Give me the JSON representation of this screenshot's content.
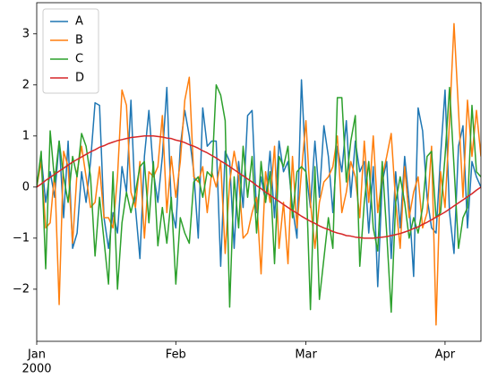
{
  "chart_data": {
    "type": "line",
    "xlim": [
      0,
      99
    ],
    "xticks": [
      {
        "value": 0,
        "label": "Jan"
      },
      {
        "value": 31,
        "label": "Feb"
      },
      {
        "value": 60,
        "label": "Mar"
      },
      {
        "value": 91,
        "label": "Apr"
      }
    ],
    "x_offset_label": "2000",
    "ylim": [
      -3.02,
      3.61
    ],
    "yticks": [
      {
        "value": -2,
        "label": "−2"
      },
      {
        "value": -1,
        "label": "−1"
      },
      0,
      1,
      2,
      3
    ],
    "legend": "upper left",
    "series": [
      {
        "name": "A",
        "color": "#1f77b4",
        "values": [
          0.0,
          0.6,
          -0.3,
          0.3,
          -0.2,
          0.9,
          -0.6,
          0.9,
          -1.2,
          -0.9,
          0.3,
          -0.3,
          0.5,
          1.65,
          1.6,
          -0.6,
          -1.2,
          -0.5,
          -0.9,
          0.4,
          -0.1,
          1.7,
          -0.4,
          -1.4,
          0.6,
          1.5,
          0.3,
          -0.3,
          0.6,
          1.95,
          -0.4,
          -0.8,
          0.8,
          1.5,
          1.0,
          0.3,
          -1.0,
          1.55,
          0.8,
          0.9,
          0.9,
          -1.55,
          0.7,
          0.5,
          -1.2,
          0.5,
          -0.4,
          1.4,
          1.5,
          -0.5,
          0.2,
          -0.3,
          0.7,
          -0.6,
          0.9,
          0.3,
          0.5,
          -0.4,
          -1.0,
          2.1,
          0.3,
          -0.4,
          0.9,
          -0.2,
          1.2,
          0.6,
          -0.5,
          0.8,
          0.3,
          1.3,
          -0.2,
          0.9,
          0.3,
          0.5,
          -0.9,
          0.4,
          -1.95,
          0.1,
          0.5,
          -1.4,
          0.3,
          -0.8,
          0.6,
          -0.3,
          -1.75,
          1.55,
          1.1,
          -0.2,
          -0.8,
          -0.9,
          0.6,
          1.9,
          -0.5,
          -1.3,
          0.8,
          1.2,
          -0.8,
          0.5,
          0.2,
          0.0
        ]
      },
      {
        "name": "B",
        "color": "#ff7f0e",
        "values": [
          0.0,
          0.5,
          -0.8,
          -0.7,
          0.3,
          -2.3,
          0.7,
          0.4,
          -1.1,
          0.3,
          0.8,
          0.2,
          -0.4,
          -0.3,
          0.4,
          -0.6,
          -0.6,
          -0.8,
          0.2,
          1.9,
          1.6,
          -0.1,
          -0.4,
          0.5,
          -1.0,
          0.3,
          0.2,
          0.4,
          1.4,
          -0.5,
          0.6,
          -0.2,
          0.5,
          1.7,
          2.15,
          0.2,
          0.1,
          0.4,
          -0.5,
          0.3,
          0.0,
          0.5,
          -1.3,
          0.1,
          0.7,
          0.2,
          -1.0,
          -0.9,
          -0.5,
          -0.2,
          -1.7,
          0.3,
          -0.3,
          0.8,
          -1.2,
          -0.3,
          -1.5,
          0.6,
          -0.8,
          0.3,
          1.3,
          -0.3,
          -1.2,
          -0.3,
          0.1,
          0.2,
          0.4,
          1.0,
          -0.5,
          -0.1,
          0.5,
          0.2,
          -0.6,
          0.9,
          -0.3,
          1.0,
          -0.5,
          0.2,
          0.6,
          1.05,
          -0.3,
          -1.2,
          0.4,
          -0.6,
          -0.1,
          0.2,
          -0.8,
          -0.5,
          0.8,
          -2.7,
          0.3,
          -0.4,
          1.3,
          3.2,
          1.5,
          -0.2,
          1.7,
          0.6,
          1.5,
          0.6
        ]
      },
      {
        "name": "C",
        "color": "#2ca02c",
        "values": [
          0.0,
          0.7,
          -1.6,
          1.1,
          0.1,
          0.9,
          0.2,
          -0.3,
          0.6,
          0.2,
          1.05,
          0.8,
          0.2,
          -1.35,
          -0.2,
          -1.05,
          -1.9,
          0.3,
          -2.0,
          -0.7,
          -0.1,
          -0.5,
          -0.1,
          0.4,
          0.5,
          -0.7,
          0.5,
          -1.15,
          -0.4,
          -1.1,
          -0.2,
          -1.9,
          -0.6,
          -0.9,
          -1.1,
          0.1,
          0.2,
          -0.2,
          0.3,
          0.2,
          2.0,
          1.8,
          1.3,
          -2.35,
          0.2,
          -0.8,
          0.8,
          -0.2,
          0.6,
          -0.9,
          0.5,
          -0.3,
          0.3,
          -1.5,
          0.6,
          0.4,
          0.8,
          -0.6,
          0.3,
          0.4,
          0.3,
          -2.4,
          0.4,
          -2.2,
          -1.4,
          -0.6,
          -1.2,
          1.75,
          1.75,
          0.1,
          0.9,
          1.4,
          -1.55,
          -0.3,
          0.5,
          -0.8,
          -1.25,
          0.5,
          -0.9,
          -2.45,
          -0.3,
          0.2,
          -0.3,
          -1.0,
          -0.6,
          -0.9,
          -0.4,
          0.6,
          0.7,
          -0.6,
          -0.5,
          0.6,
          1.95,
          0.4,
          -1.2,
          -0.6,
          -0.4,
          1.6,
          0.3,
          0.2
        ]
      },
      {
        "name": "D",
        "color": "#d62728",
        "values": [
          0,
          0.06,
          0.13,
          0.19,
          0.25,
          0.31,
          0.37,
          0.43,
          0.49,
          0.54,
          0.59,
          0.64,
          0.69,
          0.73,
          0.78,
          0.81,
          0.85,
          0.88,
          0.91,
          0.93,
          0.95,
          0.97,
          0.98,
          0.99,
          1.0,
          1.0,
          1.0,
          0.99,
          0.98,
          0.96,
          0.95,
          0.92,
          0.9,
          0.87,
          0.83,
          0.8,
          0.76,
          0.71,
          0.67,
          0.62,
          0.57,
          0.51,
          0.46,
          0.4,
          0.34,
          0.28,
          0.22,
          0.16,
          0.1,
          0.03,
          -0.03,
          -0.1,
          -0.16,
          -0.22,
          -0.28,
          -0.34,
          -0.4,
          -0.46,
          -0.51,
          -0.57,
          -0.62,
          -0.67,
          -0.71,
          -0.76,
          -0.8,
          -0.83,
          -0.87,
          -0.9,
          -0.92,
          -0.95,
          -0.96,
          -0.98,
          -0.99,
          -1.0,
          -1.0,
          -1.0,
          -0.99,
          -0.98,
          -0.97,
          -0.95,
          -0.93,
          -0.91,
          -0.88,
          -0.85,
          -0.81,
          -0.78,
          -0.73,
          -0.69,
          -0.64,
          -0.59,
          -0.54,
          -0.49,
          -0.43,
          -0.37,
          -0.31,
          -0.25,
          -0.19,
          -0.13,
          -0.06,
          0
        ]
      }
    ]
  }
}
